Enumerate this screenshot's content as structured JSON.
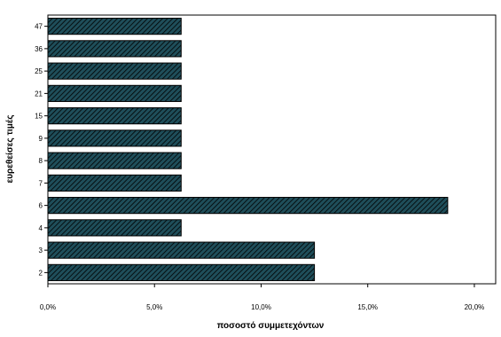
{
  "chart_data": {
    "type": "bar",
    "orientation": "horizontal",
    "categories": [
      "47",
      "36",
      "25",
      "21",
      "15",
      "9",
      "8",
      "7",
      "6",
      "4",
      "3",
      "2"
    ],
    "values": [
      6.25,
      6.25,
      6.25,
      6.25,
      6.25,
      6.25,
      6.25,
      6.25,
      18.75,
      6.25,
      12.5,
      12.5
    ],
    "xlabel": "ποσοστό συμμετεχόντων",
    "ylabel": "ευρεθείσες τιμές",
    "xlim": [
      0,
      21
    ],
    "xticks": [
      0,
      5,
      10,
      15,
      20
    ],
    "xtick_labels": [
      "0,0%",
      "5,0%",
      "10,0%",
      "15,0%",
      "20,0%"
    ],
    "grid": false,
    "colors": {
      "bar_fill": "#1f4e5a",
      "bar_hatch": "#000000",
      "axis": "#000000"
    }
  }
}
